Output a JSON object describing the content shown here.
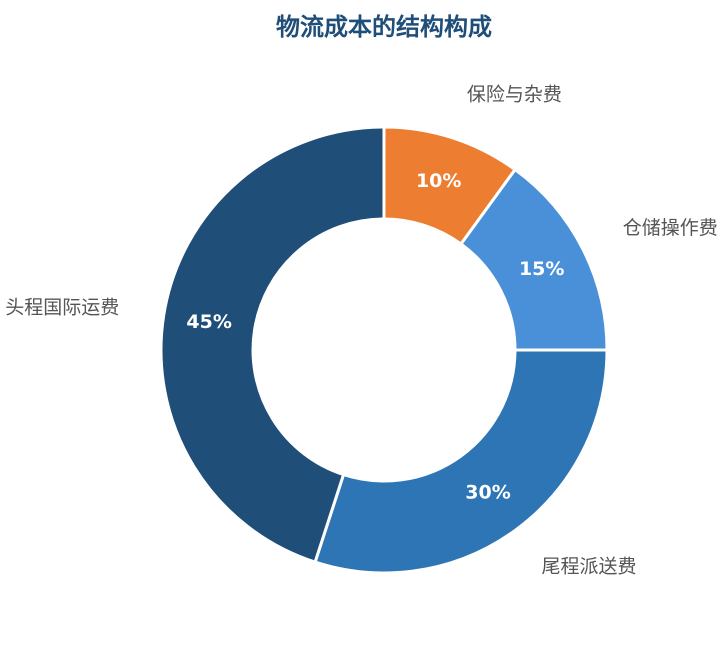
{
  "chart_data": {
    "type": "pie",
    "title": "物流成本的结构构成",
    "categories": [
      "保险与杂费",
      "仓储操作费",
      "尾程派送费",
      "头程国际运费"
    ],
    "values": [
      10,
      15,
      30,
      45
    ],
    "value_labels": [
      "10%",
      "15%",
      "30%",
      "45%"
    ],
    "colors": [
      "#ED7D31",
      "#4A90D9",
      "#2E75B6",
      "#1F4E79"
    ]
  }
}
